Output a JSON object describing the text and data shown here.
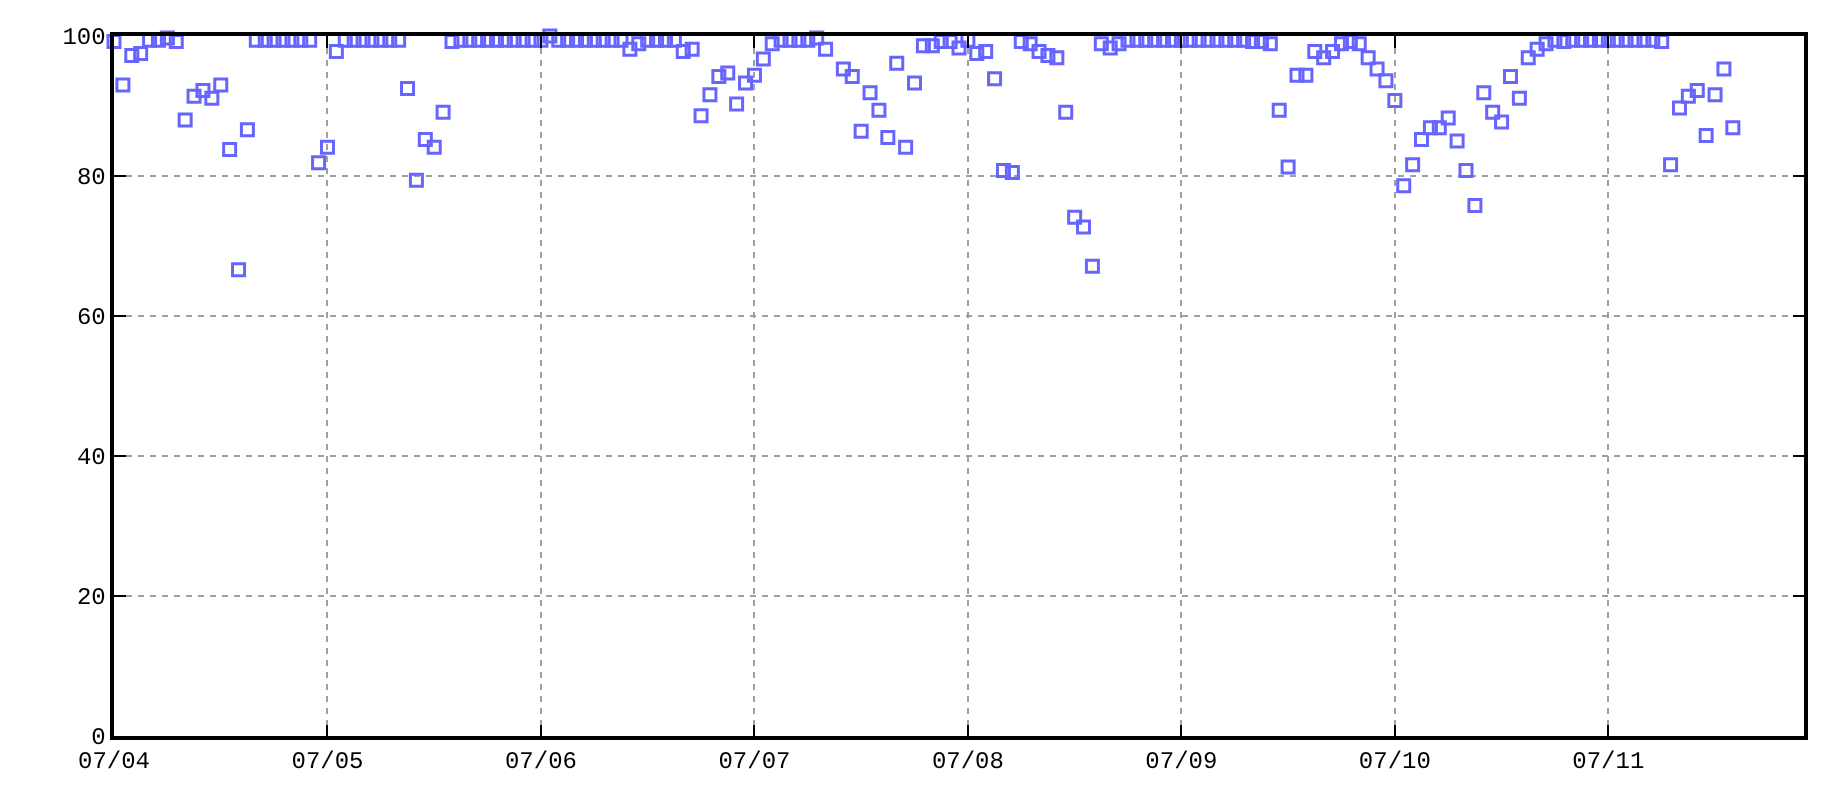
{
  "chart_data": {
    "type": "scatter",
    "marker": "square",
    "grid": true,
    "xlim": [
      "--07-04T00:00",
      "--07-11T22:00"
    ],
    "xticks": [
      {
        "value": "--07-04",
        "label": "07/04"
      },
      {
        "value": "--07-05",
        "label": "07/05"
      },
      {
        "value": "--07-06",
        "label": "07/06"
      },
      {
        "value": "--07-07",
        "label": "07/07"
      },
      {
        "value": "--07-08",
        "label": "07/08"
      },
      {
        "value": "--07-09",
        "label": "07/09"
      },
      {
        "value": "--07-10",
        "label": "07/10"
      },
      {
        "value": "--07-11",
        "label": "07/11"
      }
    ],
    "ylim": [
      0,
      100
    ],
    "yticks": [
      0,
      20,
      40,
      60,
      80,
      100
    ],
    "x": [
      "--07-04T00:00",
      "--07-04T01:00",
      "--07-04T02:00",
      "--07-04T03:00",
      "--07-04T04:00",
      "--07-04T05:00",
      "--07-04T06:00",
      "--07-04T07:00",
      "--07-04T08:00",
      "--07-04T09:00",
      "--07-04T10:00",
      "--07-04T11:00",
      "--07-04T12:00",
      "--07-04T13:00",
      "--07-04T14:00",
      "--07-04T15:00",
      "--07-04T16:00",
      "--07-04T17:00",
      "--07-04T18:00",
      "--07-04T19:00",
      "--07-04T20:00",
      "--07-04T21:00",
      "--07-04T22:00",
      "--07-04T23:00",
      "--07-05T00:00",
      "--07-05T01:00",
      "--07-05T02:00",
      "--07-05T03:00",
      "--07-05T04:00",
      "--07-05T05:00",
      "--07-05T06:00",
      "--07-05T07:00",
      "--07-05T08:00",
      "--07-05T09:00",
      "--07-05T10:00",
      "--07-05T11:00",
      "--07-05T12:00",
      "--07-05T13:00",
      "--07-05T14:00",
      "--07-05T15:00",
      "--07-05T16:00",
      "--07-05T17:00",
      "--07-05T18:00",
      "--07-05T19:00",
      "--07-05T20:00",
      "--07-05T21:00",
      "--07-05T22:00",
      "--07-05T23:00",
      "--07-06T00:00",
      "--07-06T01:00",
      "--07-06T02:00",
      "--07-06T03:00",
      "--07-06T04:00",
      "--07-06T05:00",
      "--07-06T06:00",
      "--07-06T07:00",
      "--07-06T08:00",
      "--07-06T09:00",
      "--07-06T10:00",
      "--07-06T11:00",
      "--07-06T12:00",
      "--07-06T13:00",
      "--07-06T14:00",
      "--07-06T15:00",
      "--07-06T16:00",
      "--07-06T17:00",
      "--07-06T18:00",
      "--07-06T19:00",
      "--07-06T20:00",
      "--07-06T21:00",
      "--07-06T22:00",
      "--07-06T23:00",
      "--07-07T00:00",
      "--07-07T01:00",
      "--07-07T02:00",
      "--07-07T03:00",
      "--07-07T04:00",
      "--07-07T05:00",
      "--07-07T06:00",
      "--07-07T07:00",
      "--07-07T08:00",
      "--07-07T09:00",
      "--07-07T10:00",
      "--07-07T11:00",
      "--07-07T12:00",
      "--07-07T13:00",
      "--07-07T14:00",
      "--07-07T15:00",
      "--07-07T16:00",
      "--07-07T17:00",
      "--07-07T18:00",
      "--07-07T19:00",
      "--07-07T20:00",
      "--07-07T21:00",
      "--07-07T22:00",
      "--07-07T23:00",
      "--07-08T00:00",
      "--07-08T01:00",
      "--07-08T02:00",
      "--07-08T03:00",
      "--07-08T04:00",
      "--07-08T05:00",
      "--07-08T06:00",
      "--07-08T07:00",
      "--07-08T08:00",
      "--07-08T09:00",
      "--07-08T10:00",
      "--07-08T11:00",
      "--07-08T12:00",
      "--07-08T13:00",
      "--07-08T14:00",
      "--07-08T15:00",
      "--07-08T16:00",
      "--07-08T17:00",
      "--07-08T18:00",
      "--07-08T19:00",
      "--07-08T20:00",
      "--07-08T21:00",
      "--07-08T22:00",
      "--07-08T23:00",
      "--07-09T00:00",
      "--07-09T01:00",
      "--07-09T02:00",
      "--07-09T03:00",
      "--07-09T04:00",
      "--07-09T05:00",
      "--07-09T06:00",
      "--07-09T07:00",
      "--07-09T08:00",
      "--07-09T09:00",
      "--07-09T10:00",
      "--07-09T11:00",
      "--07-09T12:00",
      "--07-09T13:00",
      "--07-09T14:00",
      "--07-09T15:00",
      "--07-09T16:00",
      "--07-09T17:00",
      "--07-09T18:00",
      "--07-09T19:00",
      "--07-09T20:00",
      "--07-09T21:00",
      "--07-09T22:00",
      "--07-09T23:00",
      "--07-10T00:00",
      "--07-10T01:00",
      "--07-10T02:00",
      "--07-10T03:00",
      "--07-10T04:00",
      "--07-10T05:00",
      "--07-10T06:00",
      "--07-10T07:00",
      "--07-10T08:00",
      "--07-10T09:00",
      "--07-10T10:00",
      "--07-10T11:00",
      "--07-10T12:00",
      "--07-10T13:00",
      "--07-10T14:00",
      "--07-10T15:00",
      "--07-10T16:00",
      "--07-10T17:00",
      "--07-10T18:00",
      "--07-10T19:00",
      "--07-10T20:00",
      "--07-10T21:00",
      "--07-10T22:00",
      "--07-10T23:00",
      "--07-11T00:00",
      "--07-11T01:00",
      "--07-11T02:00",
      "--07-11T03:00",
      "--07-11T04:00",
      "--07-11T05:00",
      "--07-11T06:00",
      "--07-11T07:00",
      "--07-11T08:00",
      "--07-11T09:00",
      "--07-11T10:00",
      "--07-11T11:00",
      "--07-11T12:00",
      "--07-11T13:00",
      "--07-11T14:00"
    ],
    "series": [
      {
        "color": "#6666ff",
        "values": [
          99.2,
          93.0,
          97.2,
          97.5,
          99.4,
          99.4,
          99.7,
          99.2,
          88.0,
          91.4,
          92.2,
          91.1,
          93.0,
          83.8,
          66.6,
          86.6,
          99.4,
          99.4,
          99.4,
          99.4,
          99.4,
          99.4,
          99.4,
          81.9,
          84.1,
          97.8,
          99.4,
          99.4,
          99.4,
          99.4,
          99.4,
          99.4,
          99.4,
          92.5,
          79.4,
          85.2,
          84.1,
          89.1,
          99.2,
          99.4,
          99.4,
          99.4,
          99.4,
          99.4,
          99.4,
          99.4,
          99.4,
          99.4,
          99.4,
          100,
          99.4,
          99.4,
          99.4,
          99.4,
          99.4,
          99.4,
          99.4,
          99.4,
          98.1,
          98.9,
          99.4,
          99.4,
          99.4,
          99.4,
          97.8,
          98.1,
          88.6,
          91.6,
          94.2,
          94.7,
          90.3,
          93.3,
          94.4,
          96.7,
          98.9,
          99.4,
          99.4,
          99.4,
          99.4,
          99.7,
          98.1,
          null,
          95.3,
          94.2,
          86.4,
          91.9,
          89.4,
          85.5,
          96.1,
          84.1,
          93.3,
          98.6,
          98.6,
          99.2,
          99.2,
          98.3,
          99.4,
          97.5,
          97.8,
          93.9,
          80.8,
          80.5,
          99.2,
          98.9,
          97.8,
          97.2,
          96.9,
          89.1,
          74.1,
          72.7,
          67.1,
          98.9,
          98.3,
          98.9,
          99.4,
          99.4,
          99.4,
          99.4,
          99.4,
          99.4,
          99.4,
          99.4,
          99.4,
          99.4,
          99.4,
          99.4,
          99.4,
          99.4,
          99.2,
          99.2,
          98.9,
          89.4,
          81.3,
          94.4,
          94.4,
          97.8,
          96.9,
          97.8,
          98.9,
          99.2,
          98.9,
          96.9,
          95.3,
          93.6,
          90.8,
          78.6,
          81.6,
          85.2,
          86.9,
          86.9,
          88.3,
          85.0,
          80.8,
          75.8,
          91.9,
          89.1,
          87.7,
          94.2,
          91.1,
          96.9,
          98.1,
          98.9,
          99.4,
          99.2,
          99.4,
          99.4,
          99.4,
          99.4,
          99.4,
          99.4,
          99.4,
          99.4,
          99.4,
          99.4,
          99.2,
          81.6,
          89.7,
          91.4,
          92.2,
          85.8,
          91.6,
          95.3,
          86.9
        ]
      }
    ]
  }
}
